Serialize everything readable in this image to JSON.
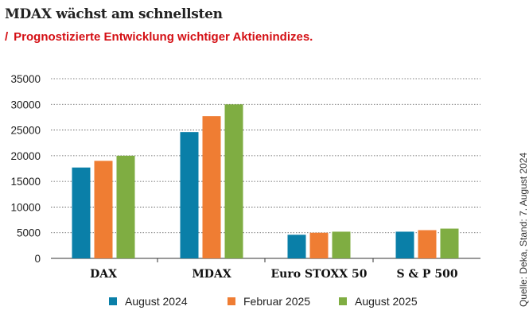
{
  "header": {
    "title": "MDAX wächst am schnellsten",
    "subtitle_marker": "/",
    "subtitle": "Prognostizierte Entwicklung wichtiger Aktienindizes."
  },
  "source": "Quelle: Deka, Stand: 7. August 2024",
  "colors": {
    "August 2024": "#0a7fa8",
    "Februar 2025": "#ef7d33",
    "August 2025": "#7fad42",
    "subtitle": "#d40f14",
    "grid": "#555555"
  },
  "chart_data": {
    "type": "bar",
    "title": "MDAX wächst am schnellsten",
    "subtitle": "Prognostizierte Entwicklung wichtiger Aktienindizes.",
    "categories": [
      "DAX",
      "MDAX",
      "Euro STOXX 50",
      "S & P 500"
    ],
    "series": [
      {
        "name": "August 2024",
        "values": [
          17700,
          24600,
          4600,
          5200
        ]
      },
      {
        "name": "Februar 2025",
        "values": [
          19000,
          27700,
          5000,
          5500
        ]
      },
      {
        "name": "August 2025",
        "values": [
          20000,
          30000,
          5200,
          5800
        ]
      }
    ],
    "yticks": [
      0,
      5000,
      10000,
      15000,
      20000,
      25000,
      30000,
      35000
    ],
    "ylim": [
      0,
      35000
    ],
    "xlabel": "",
    "ylabel": "",
    "grid": "horizontal dotted",
    "legend_position": "bottom"
  }
}
